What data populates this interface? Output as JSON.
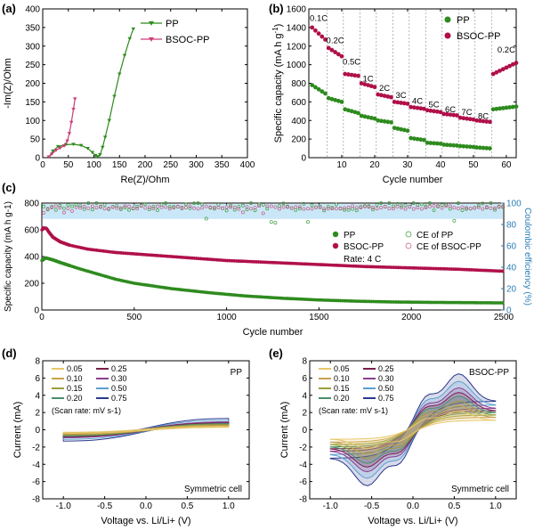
{
  "panels": {
    "a": {
      "label": "(a)"
    },
    "b": {
      "label": "(b)"
    },
    "c": {
      "label": "(c)"
    },
    "d": {
      "label": "(d)"
    },
    "e": {
      "label": "(e)"
    }
  },
  "colors": {
    "pp": "#2e8b1e",
    "bsoc": "#b0104a",
    "ce_pp": "#3c9d3c",
    "ce_bsoc": "#c45a82",
    "ce_axis": "#2a7db5",
    "ce_band": "#9fd4f2"
  },
  "chart_data": [
    {
      "id": "a",
      "type": "line",
      "title": "",
      "xlabel": "Re(Z)/Ohm",
      "ylabel": "-Im(Z)/Ohm",
      "xlim": [
        0,
        400
      ],
      "ylim": [
        0,
        400
      ],
      "xticks": [
        0,
        50,
        100,
        150,
        200,
        250,
        300,
        350,
        400
      ],
      "yticks": [
        0,
        50,
        100,
        150,
        200,
        250,
        300,
        350,
        400
      ],
      "legend": [
        "PP",
        "BSOC-PP"
      ],
      "series": [
        {
          "name": "PP",
          "color": "#2e8b1e",
          "x": [
            12,
            20,
            30,
            45,
            60,
            75,
            88,
            97,
            103,
            108,
            112,
            117,
            122,
            130,
            140,
            150,
            160,
            170,
            177
          ],
          "y": [
            2,
            18,
            30,
            35,
            36,
            33,
            25,
            14,
            6,
            3,
            8,
            28,
            55,
            100,
            165,
            225,
            275,
            320,
            346
          ]
        },
        {
          "name": "BSOC-PP",
          "color": "#cc3c78",
          "x": [
            12,
            18,
            26,
            34,
            42,
            48,
            52,
            56,
            60,
            63
          ],
          "y": [
            2,
            10,
            20,
            26,
            32,
            45,
            65,
            95,
            130,
            158
          ]
        }
      ]
    },
    {
      "id": "b",
      "type": "scatter",
      "title": "",
      "xlabel": "Cycle number",
      "ylabel": "Specific capacity (mA h g-1)",
      "xlim": [
        0,
        63
      ],
      "ylim": [
        0,
        1600
      ],
      "xticks": [
        10,
        20,
        30,
        40,
        50,
        60
      ],
      "yticks": [
        0,
        200,
        400,
        600,
        800,
        1000,
        1200,
        1400,
        1600
      ],
      "legend": [
        "PP",
        "BSOC-PP"
      ],
      "rate_labels": [
        {
          "text": "0.1C",
          "x": 3,
          "y": 1470
        },
        {
          "text": "0.2C",
          "x": 8,
          "y": 1230
        },
        {
          "text": "0.5C",
          "x": 13,
          "y": 1000
        },
        {
          "text": "1C",
          "x": 18,
          "y": 820
        },
        {
          "text": "2C",
          "x": 23,
          "y": 720
        },
        {
          "text": "3C",
          "x": 28,
          "y": 640
        },
        {
          "text": "4C",
          "x": 33,
          "y": 580
        },
        {
          "text": "5C",
          "x": 38,
          "y": 540
        },
        {
          "text": "6C",
          "x": 43,
          "y": 490
        },
        {
          "text": "7C",
          "x": 48,
          "y": 460
        },
        {
          "text": "8C",
          "x": 53,
          "y": 415
        },
        {
          "text": "0.2C",
          "x": 60,
          "y": 1130
        }
      ],
      "segments": {
        "boundaries": [
          5.5,
          10.5,
          15.5,
          20.5,
          25.5,
          30.5,
          35.5,
          40.5,
          45.5,
          50.5,
          55.5
        ],
        "bsoc_levels": [
          [
            1400,
            1270
          ],
          [
            1180,
            1090
          ],
          [
            900,
            880
          ],
          [
            800,
            760
          ],
          [
            680,
            650
          ],
          [
            600,
            580
          ],
          [
            545,
            525
          ],
          [
            510,
            490
          ],
          [
            470,
            455
          ],
          [
            430,
            410
          ],
          [
            400,
            385
          ],
          [
            900,
            1020
          ]
        ],
        "pp_levels": [
          [
            780,
            690
          ],
          [
            640,
            600
          ],
          [
            520,
            480
          ],
          [
            450,
            420
          ],
          [
            400,
            380
          ],
          [
            320,
            290
          ],
          [
            210,
            190
          ],
          [
            160,
            150
          ],
          [
            140,
            130
          ],
          [
            125,
            115
          ],
          [
            110,
            100
          ],
          [
            520,
            550
          ]
        ]
      }
    },
    {
      "id": "c",
      "type": "line",
      "title": "",
      "xlabel": "Cycle number",
      "ylabel": "Specific capacity (mA h g-1)",
      "y2label": "Coulombic efficiency (%)",
      "xlim": [
        0,
        2500
      ],
      "ylim": [
        0,
        800
      ],
      "y2lim": [
        0,
        100
      ],
      "xticks": [
        0,
        500,
        1000,
        1500,
        2000,
        2500
      ],
      "yticks": [
        0,
        200,
        400,
        600,
        800
      ],
      "y2ticks": [
        0,
        20,
        40,
        60,
        80,
        100
      ],
      "annotation": "Rate: 4 C",
      "legend": [
        "PP",
        "BSOC-PP",
        "CE of PP",
        "CE of BSOC-PP"
      ],
      "series": [
        {
          "name": "PP",
          "x": [
            1,
            20,
            60,
            100,
            200,
            300,
            400,
            500,
            700,
            900,
            1100,
            1300,
            1500,
            1700,
            1900,
            2100,
            2300,
            2500
          ],
          "y": [
            370,
            390,
            375,
            355,
            310,
            270,
            230,
            200,
            160,
            130,
            105,
            88,
            75,
            66,
            60,
            57,
            55,
            53
          ]
        },
        {
          "name": "BSOC-PP",
          "x": [
            1,
            10,
            25,
            40,
            60,
            100,
            150,
            250,
            400,
            600,
            800,
            1000,
            1250,
            1500,
            1750,
            2000,
            2250,
            2500
          ],
          "y": [
            600,
            615,
            610,
            580,
            545,
            510,
            485,
            455,
            430,
            410,
            390,
            370,
            355,
            340,
            325,
            315,
            305,
            290
          ]
        },
        {
          "name": "CE of PP",
          "ce_mean": 97,
          "ce_spread": 8
        },
        {
          "name": "CE of BSOC-PP",
          "ce_mean": 96,
          "ce_spread": 3
        }
      ]
    },
    {
      "id": "d",
      "type": "line",
      "title": "PP",
      "annotation": "Symmetric cell",
      "xlabel": "Voltage vs. Li/Li+ (V)",
      "ylabel": "Current (mA)",
      "xlim": [
        -1.25,
        1.25
      ],
      "ylim": [
        -8,
        8
      ],
      "xticks": [
        -1.0,
        -0.5,
        0.0,
        0.5,
        1.0
      ],
      "yticks": [
        -8,
        -6,
        -4,
        -2,
        0,
        2,
        4,
        6,
        8
      ],
      "scan_rate_note": "(Scan rate: mV s-1)",
      "scan_rates": [
        "0.05",
        "0.10",
        "0.15",
        "0.20",
        "0.25",
        "0.30",
        "0.50",
        "0.75"
      ],
      "peak_currents": [
        0.4,
        0.5,
        0.6,
        0.7,
        0.8,
        0.9,
        1.1,
        1.3
      ]
    },
    {
      "id": "e",
      "type": "line",
      "title": "BSOC-PP",
      "annotation": "Symmetric cell",
      "xlabel": "Voltage vs. Li/Li+ (V)",
      "ylabel": "Current (mA)",
      "xlim": [
        -1.25,
        1.25
      ],
      "ylim": [
        -8,
        8
      ],
      "xticks": [
        -1.0,
        -0.5,
        0.0,
        0.5,
        1.0
      ],
      "yticks": [
        -8,
        -6,
        -4,
        -2,
        0,
        2,
        4,
        6,
        8
      ],
      "scan_rate_note": "(Scan rate: mV s-1)",
      "scan_rates": [
        "0.05",
        "0.10",
        "0.15",
        "0.20",
        "0.25",
        "0.30",
        "0.50",
        "0.75"
      ],
      "peak_currents": [
        2.0,
        2.6,
        3.1,
        3.6,
        4.0,
        4.5,
        5.2,
        6.0
      ]
    }
  ],
  "scan_colors": [
    "#e8c66a",
    "#c7a24a",
    "#9aa03a",
    "#4a8f6a",
    "#7a1f4a",
    "#8a3f8f",
    "#5aa0d0",
    "#2a3a8f"
  ]
}
